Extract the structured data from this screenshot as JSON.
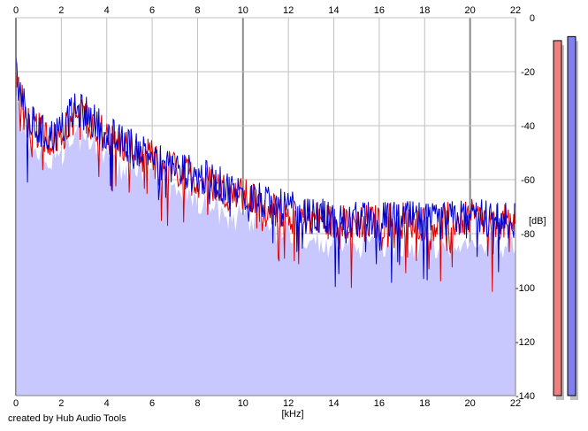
{
  "footer": {
    "credit": "created by Hub Audio Tools"
  },
  "colors": {
    "background": "#ffffff",
    "plot_background": "#ffffff",
    "grid": "#c0c0c0",
    "grid_major": "#8a8a8a",
    "fill": "#c8c8ff",
    "left_channel": "#e00000",
    "right_channel": "#0000d0",
    "meter_left": "#f08080",
    "meter_right": "#8080f0",
    "meter_shadow": "#c0c0c0"
  },
  "chart_data": {
    "type": "line",
    "title": "",
    "xlabel": "[kHz]",
    "ylabel": "[dB]",
    "xlim": [
      0,
      22
    ],
    "ylim": [
      -140,
      0
    ],
    "x_ticks": [
      "0",
      "2",
      "4",
      "6",
      "8",
      "10",
      "12",
      "14",
      "16",
      "18",
      "20",
      "22"
    ],
    "y_ticks": [
      "0",
      "-20",
      "-40",
      "-60",
      "-80",
      "-100",
      "-120",
      "-140"
    ],
    "grid": true,
    "x": [
      0,
      0.5,
      1,
      1.5,
      2,
      2.5,
      3,
      3.5,
      4,
      4.5,
      5,
      5.5,
      6,
      6.5,
      7,
      7.5,
      8,
      8.5,
      9,
      9.5,
      10,
      10.5,
      11,
      11.5,
      12,
      12.5,
      13,
      13.5,
      14,
      14.5,
      15,
      15.5,
      16,
      16.5,
      17,
      17.5,
      18,
      18.5,
      19,
      19.5,
      20,
      20.5,
      21,
      21.5,
      22
    ],
    "series": [
      {
        "values": [
          -22,
          -38,
          -42,
          -45,
          -44,
          -37,
          -36,
          -40,
          -44,
          -47,
          -48,
          -50,
          -52,
          -55,
          -56,
          -58,
          -60,
          -61,
          -63,
          -65,
          -66,
          -68,
          -70,
          -71,
          -72,
          -73,
          -74,
          -75,
          -76,
          -76,
          -75,
          -76,
          -76,
          -75,
          -75,
          -75,
          -76,
          -76,
          -75,
          -75,
          -74,
          -75,
          -75,
          -76,
          -75
        ]
      },
      {
        "values": [
          -20,
          -37,
          -42,
          -44,
          -42,
          -35,
          -35,
          -39,
          -42,
          -46,
          -47,
          -49,
          -51,
          -54,
          -55,
          -57,
          -59,
          -60,
          -62,
          -64,
          -65,
          -67,
          -69,
          -70,
          -71,
          -72,
          -74,
          -74,
          -75,
          -76,
          -75,
          -75,
          -75,
          -75,
          -74,
          -75,
          -75,
          -76,
          -75,
          -74,
          -74,
          -74,
          -75,
          -75,
          -75
        ]
      }
    ],
    "meters": {
      "left_db": -8.5,
      "right_db": -7
    }
  }
}
